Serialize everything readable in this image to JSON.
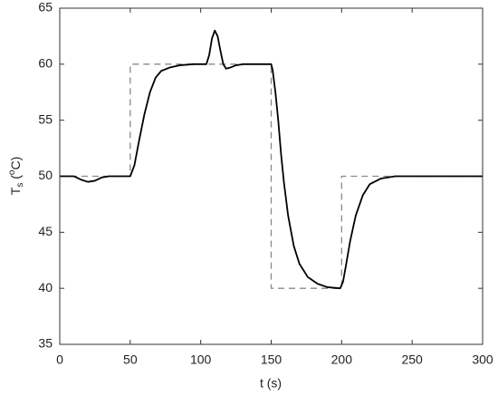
{
  "chart_data": {
    "type": "line",
    "xlabel": "t (s)",
    "ylabel": [
      "T",
      "s",
      " (",
      "o",
      "C)"
    ],
    "xlim": [
      0,
      300
    ],
    "xticks": [
      0,
      50,
      100,
      150,
      200,
      250,
      300
    ],
    "ylim": [
      35,
      65
    ],
    "yticks": [
      35,
      40,
      45,
      50,
      55,
      60,
      65
    ],
    "series": [
      {
        "color": "#888888",
        "dashed": true,
        "x": [
          0,
          50,
          50,
          150,
          150,
          200,
          200,
          300
        ],
        "values": [
          50,
          50,
          60,
          60,
          40,
          40,
          50,
          50
        ]
      },
      {
        "color": "#000000",
        "dashed": false,
        "x": [
          0,
          10,
          15,
          20,
          25,
          30,
          35,
          50,
          53,
          56,
          60,
          64,
          68,
          72,
          78,
          85,
          95,
          104,
          106,
          108,
          110,
          112,
          114,
          116,
          118,
          121,
          125,
          130,
          150,
          151,
          153,
          155,
          157,
          159,
          162,
          166,
          170,
          176,
          183,
          190,
          199,
          201,
          203,
          206,
          210,
          215,
          220,
          228,
          238,
          250,
          300
        ],
        "values": [
          50,
          50,
          49.7,
          49.5,
          49.6,
          49.9,
          50,
          50,
          51,
          53,
          55.5,
          57.5,
          58.8,
          59.4,
          59.7,
          59.9,
          60,
          60,
          60.8,
          62.3,
          63,
          62.5,
          61.2,
          60,
          59.6,
          59.7,
          59.9,
          60,
          60,
          59.5,
          57.5,
          55,
          52,
          49.5,
          46.5,
          43.8,
          42.2,
          41,
          40.4,
          40.1,
          40,
          40.6,
          42,
          44.2,
          46.5,
          48.3,
          49.3,
          49.8,
          50,
          50,
          50
        ]
      }
    ]
  }
}
